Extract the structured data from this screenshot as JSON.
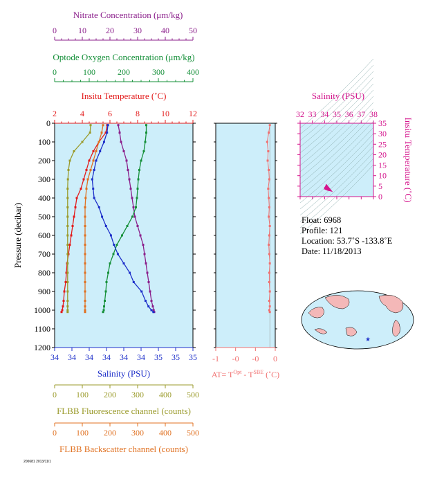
{
  "chart_data": [
    {
      "type": "line",
      "ylabel": "Pressure (decibar)",
      "y_ticks": [
        "0",
        "100",
        "200",
        "300",
        "400",
        "500",
        "600",
        "700",
        "800",
        "900",
        "1000",
        "1100",
        "1200"
      ],
      "ylim": [
        1200,
        0
      ],
      "axes_top": [
        {
          "label": "Nitrate Concentration (μm/kg)",
          "ticks": [
            "0",
            "10",
            "20",
            "30",
            "40",
            "50"
          ],
          "range": [
            0,
            50
          ],
          "color": "#8b1f8b"
        },
        {
          "label": "Optode Oxygen Concentration (μm/kg)",
          "ticks": [
            "0",
            "100",
            "200",
            "300",
            "400"
          ],
          "range": [
            0,
            400
          ],
          "color": "#16903a"
        },
        {
          "label": "Insitu Temperature (˚C)",
          "ticks": [
            "2",
            "4",
            "6",
            "8",
            "10",
            "12"
          ],
          "range": [
            2,
            12
          ],
          "color": "#e31c1c"
        }
      ],
      "axes_bottom": [
        {
          "label": "Salinity (PSU)",
          "ticks": [
            "34",
            "34",
            "34",
            "34",
            "34",
            "34",
            "35",
            "35",
            "35"
          ],
          "range": [
            33.6,
            35.0
          ],
          "color": "#1d2fc9"
        },
        {
          "label": "FLBB Fluorescence channel (counts)",
          "ticks": [
            "0",
            "100",
            "200",
            "300",
            "400",
            "500"
          ],
          "range": [
            0,
            500
          ],
          "color": "#9a9a2a"
        },
        {
          "label": "FLBB Backscatter channel (counts)",
          "ticks": [
            "0",
            "100",
            "200",
            "300",
            "400",
            "500"
          ],
          "range": [
            0,
            500
          ],
          "color": "#e07020"
        }
      ],
      "series": [
        {
          "name": "Nitrate Concentration",
          "color": "#8b1f8b",
          "x": [
            23,
            23.5,
            24,
            25,
            26,
            26.5,
            27,
            27.5,
            28,
            28.5,
            29,
            30,
            31,
            32,
            32.5,
            33,
            33.5,
            34,
            34.5,
            35,
            35.5,
            35.8,
            36
          ],
          "y": [
            10,
            50,
            100,
            150,
            200,
            250,
            300,
            350,
            400,
            450,
            500,
            550,
            600,
            650,
            700,
            750,
            800,
            850,
            900,
            950,
            980,
            1000,
            1010
          ]
        },
        {
          "name": "Optode Oxygen Concentration",
          "color": "#16903a",
          "x": [
            265,
            265,
            262,
            258,
            250,
            245,
            242,
            240,
            238,
            235,
            225,
            210,
            195,
            180,
            170,
            160,
            155,
            150,
            148,
            145,
            143,
            142,
            140
          ],
          "y": [
            10,
            50,
            100,
            150,
            200,
            250,
            300,
            350,
            400,
            450,
            500,
            550,
            600,
            650,
            700,
            750,
            800,
            850,
            900,
            950,
            980,
            1000,
            1010
          ]
        },
        {
          "name": "Insitu Temperature",
          "color": "#e31c1c",
          "x": [
            5.8,
            5.7,
            5.2,
            4.8,
            4.5,
            4.3,
            4.1,
            3.9,
            3.6,
            3.5,
            3.4,
            3.3,
            3.2,
            3.1,
            3.0,
            2.9,
            2.85,
            2.8,
            2.7,
            2.65,
            2.6,
            2.55,
            2.5
          ],
          "y": [
            10,
            50,
            100,
            150,
            200,
            250,
            300,
            350,
            400,
            450,
            500,
            550,
            600,
            650,
            700,
            750,
            800,
            850,
            900,
            950,
            980,
            1000,
            1010
          ]
        },
        {
          "name": "Salinity",
          "color": "#1d2fc9",
          "x": [
            34.14,
            34.13,
            34.1,
            34.06,
            34.02,
            34.0,
            33.98,
            33.99,
            34.0,
            34.05,
            34.08,
            34.12,
            34.17,
            34.2,
            34.24,
            34.3,
            34.36,
            34.4,
            34.48,
            34.52,
            34.55,
            34.58,
            34.6
          ],
          "y": [
            10,
            50,
            100,
            150,
            200,
            250,
            300,
            350,
            400,
            450,
            500,
            550,
            600,
            650,
            700,
            750,
            800,
            850,
            900,
            950,
            980,
            1000,
            1010
          ]
        },
        {
          "name": "FLBB Fluorescence channel",
          "color": "#9a9a2a",
          "x": [
            130,
            128,
            100,
            70,
            55,
            50,
            48,
            47,
            47,
            47,
            47,
            47,
            47,
            47,
            47,
            47,
            47,
            47,
            47,
            47,
            47,
            47,
            47
          ],
          "y": [
            10,
            50,
            100,
            150,
            200,
            250,
            300,
            350,
            400,
            450,
            500,
            550,
            600,
            650,
            700,
            750,
            800,
            850,
            900,
            950,
            980,
            1000,
            1010
          ]
        },
        {
          "name": "FLBB Backscatter channel",
          "color": "#e07020",
          "x": [
            175,
            170,
            160,
            150,
            140,
            130,
            120,
            115,
            112,
            110,
            110,
            110,
            110,
            110,
            110,
            110,
            110,
            110,
            110,
            110,
            110,
            110,
            110
          ],
          "y": [
            10,
            50,
            100,
            150,
            200,
            250,
            300,
            350,
            400,
            450,
            500,
            550,
            600,
            650,
            700,
            750,
            800,
            850,
            900,
            950,
            980,
            1000,
            1010
          ]
        }
      ]
    },
    {
      "type": "line",
      "xlabel_parts": [
        "AT= T",
        "Opt",
        " - T",
        "SBE",
        " (˚C)"
      ],
      "x_ticks": [
        "-1",
        "-0",
        "-0",
        "0"
      ],
      "xlim": [
        -1,
        0.1
      ],
      "color": "#f07070",
      "series": [
        {
          "name": "",
          "x": [
            0.0,
            -0.02,
            -0.05,
            -0.03,
            -0.04,
            -0.02,
            -0.01,
            -0.03,
            -0.02,
            -0.01,
            -0.02,
            0.0,
            -0.01,
            -0.02,
            -0.01,
            0.0,
            -0.01,
            -0.01,
            0.0,
            -0.01,
            0.0,
            -0.01,
            0.0
          ],
          "y": [
            10,
            50,
            100,
            150,
            200,
            250,
            300,
            350,
            400,
            450,
            500,
            550,
            600,
            650,
            700,
            750,
            800,
            850,
            900,
            950,
            980,
            1000,
            1010
          ]
        }
      ]
    },
    {
      "type": "scatter",
      "title": "Salinity (PSU)",
      "x_ticks": [
        "32",
        "33",
        "34",
        "35",
        "36",
        "37",
        "38"
      ],
      "y_ticks": [
        "0",
        "5",
        "10",
        "15",
        "20",
        "25",
        "30",
        "35"
      ],
      "ylabel": "Insitu Temperature (˚C)",
      "xlim": [
        32,
        38
      ],
      "ylim": [
        0,
        35
      ],
      "color": "#d4148c"
    }
  ],
  "info": {
    "float": "Float:  6968",
    "profile": "Profile:  121",
    "location": "Location:  53.7˚S  -133.8˚E",
    "date": "Date:  11/18/2013"
  },
  "footer_code": "200681 2013/11/1"
}
